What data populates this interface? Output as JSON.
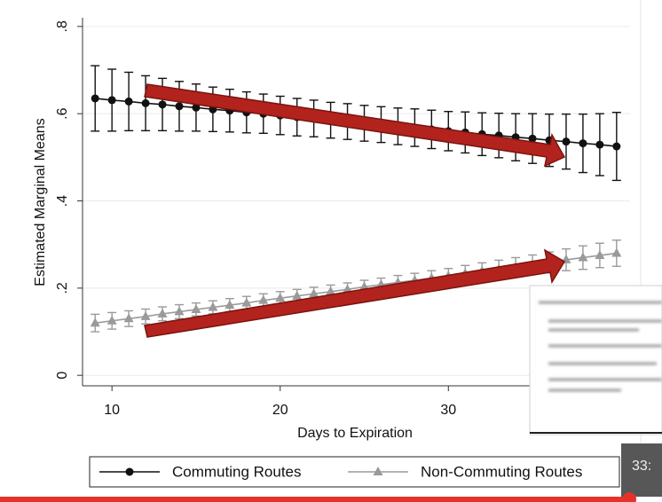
{
  "chart_data": {
    "type": "line",
    "x_label": "Days to Expiration",
    "y_label": "Estimated Marginal Means",
    "x": [
      9,
      10,
      11,
      12,
      13,
      14,
      15,
      16,
      17,
      18,
      19,
      20,
      21,
      22,
      23,
      24,
      25,
      26,
      27,
      28,
      29,
      30,
      31,
      32,
      33,
      34,
      35,
      36,
      37,
      38,
      39,
      40
    ],
    "series": [
      {
        "name": "Commuting Routes",
        "color": "#111111",
        "marker": "circle",
        "values": [
          0.635,
          0.631,
          0.628,
          0.624,
          0.621,
          0.617,
          0.614,
          0.61,
          0.607,
          0.603,
          0.6,
          0.596,
          0.592,
          0.589,
          0.585,
          0.582,
          0.578,
          0.575,
          0.571,
          0.568,
          0.564,
          0.56,
          0.557,
          0.553,
          0.55,
          0.546,
          0.543,
          0.539,
          0.536,
          0.532,
          0.529,
          0.525
        ],
        "errors": [
          0.075,
          0.071,
          0.067,
          0.063,
          0.06,
          0.057,
          0.054,
          0.051,
          0.049,
          0.047,
          0.045,
          0.044,
          0.043,
          0.042,
          0.041,
          0.041,
          0.041,
          0.041,
          0.042,
          0.043,
          0.044,
          0.045,
          0.047,
          0.049,
          0.051,
          0.054,
          0.057,
          0.06,
          0.063,
          0.067,
          0.071,
          0.078
        ]
      },
      {
        "name": "Non-Commuting Routes",
        "color": "#9a9a9a",
        "marker": "triangle",
        "values": [
          0.12,
          0.125,
          0.13,
          0.135,
          0.141,
          0.146,
          0.151,
          0.156,
          0.161,
          0.166,
          0.172,
          0.177,
          0.182,
          0.187,
          0.192,
          0.197,
          0.203,
          0.208,
          0.213,
          0.218,
          0.223,
          0.228,
          0.234,
          0.239,
          0.244,
          0.249,
          0.254,
          0.259,
          0.265,
          0.27,
          0.275,
          0.28
        ],
        "errors": [
          0.02,
          0.019,
          0.018,
          0.017,
          0.016,
          0.016,
          0.015,
          0.015,
          0.015,
          0.015,
          0.015,
          0.015,
          0.015,
          0.015,
          0.015,
          0.015,
          0.015,
          0.015,
          0.016,
          0.016,
          0.017,
          0.017,
          0.018,
          0.019,
          0.02,
          0.021,
          0.022,
          0.024,
          0.025,
          0.027,
          0.028,
          0.03
        ]
      }
    ],
    "xlim": [
      8.25,
      40.8
    ],
    "xticks": [
      10,
      20,
      30
    ],
    "ylim": [
      -0.024,
      0.82
    ],
    "yticks": [
      0,
      {
        "value": 0.2,
        "label": ".2"
      },
      {
        "value": 0.4,
        "label": ".4"
      },
      {
        "value": 0.6,
        "label": ".6"
      },
      {
        "value": 0.8,
        "label": ".8"
      }
    ],
    "grid": true
  },
  "overlay_text": "33:"
}
